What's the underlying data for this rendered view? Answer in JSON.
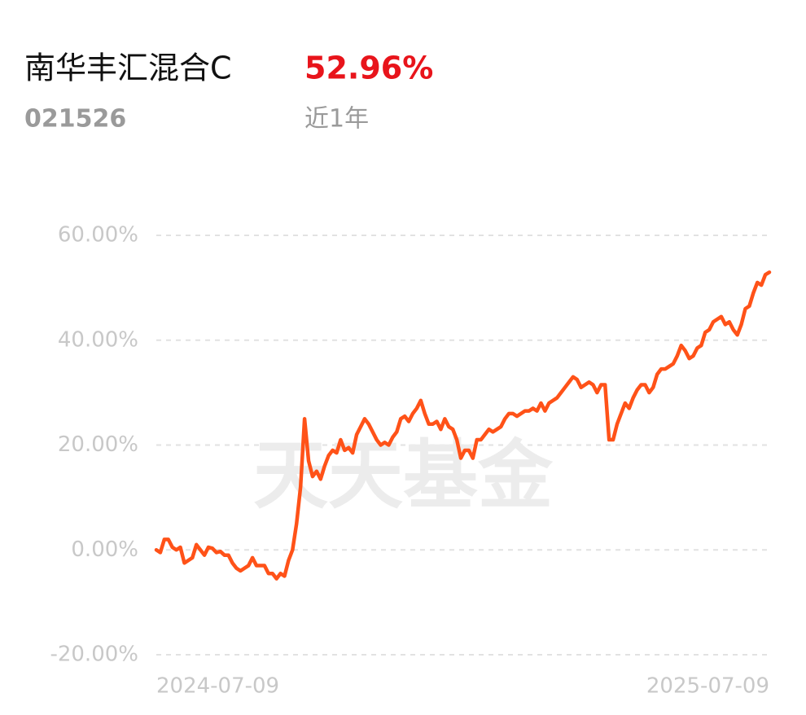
{
  "header": {
    "title": "南华丰汇混合C",
    "return": "52.96%",
    "code": "021526",
    "period": "近1年"
  },
  "chart_data": {
    "type": "line",
    "watermark": "天天基金",
    "color": "#ff5218",
    "grid": true,
    "ylim": [
      -20,
      60
    ],
    "yticks": [
      {
        "value": -20,
        "label": "-20.00%"
      },
      {
        "value": 0,
        "label": "0.00%"
      },
      {
        "value": 20,
        "label": "20.00%"
      },
      {
        "value": 40,
        "label": "40.00%"
      },
      {
        "value": 60,
        "label": "60.00%"
      }
    ],
    "categories": [
      "2024-07-09",
      null,
      null,
      null,
      null,
      null,
      null,
      null,
      null,
      null,
      null,
      null,
      null,
      null,
      null,
      null,
      null,
      null,
      null,
      null,
      null,
      null,
      null,
      null,
      null,
      null,
      null,
      null,
      null,
      null,
      null,
      null,
      null,
      null,
      null,
      null,
      null,
      null,
      null,
      null,
      null,
      null,
      null,
      null,
      null,
      null,
      null,
      null,
      null,
      null,
      null,
      null,
      null,
      null,
      null,
      null,
      null,
      null,
      null,
      null,
      null,
      null,
      null,
      null,
      null,
      null,
      null,
      null,
      null,
      null,
      null,
      null,
      null,
      null,
      null,
      null,
      null,
      null,
      null,
      null,
      null,
      null,
      null,
      null,
      null,
      null,
      null,
      null,
      null,
      null,
      null,
      null,
      null,
      null,
      null,
      null,
      null,
      null,
      null,
      null,
      null,
      null,
      null,
      null,
      null,
      null,
      null,
      null,
      null,
      null,
      null,
      null,
      null,
      null,
      null,
      null,
      null,
      null,
      null,
      null,
      null,
      null,
      null,
      null,
      null,
      null,
      null,
      null,
      null,
      null,
      null,
      null,
      null,
      null,
      null,
      null,
      null,
      null,
      null,
      null,
      null,
      null,
      null,
      null,
      null,
      null,
      null,
      null,
      null,
      null,
      null,
      null,
      null,
      "2025-07-09"
    ],
    "values": [
      0,
      -0.5,
      2,
      2,
      0.5,
      0,
      0.5,
      -2.5,
      -2,
      -1.5,
      1,
      0,
      -1,
      0.5,
      0.3,
      -0.5,
      -0.3,
      -1,
      -1,
      -2.5,
      -3.5,
      -4,
      -3.5,
      -3,
      -1.5,
      -3,
      -3,
      -3,
      -4.5,
      -4.5,
      -5.5,
      -4.5,
      -5,
      -2,
      0,
      5,
      12,
      25,
      17,
      14,
      15,
      13.5,
      16,
      18,
      19,
      18.5,
      21,
      19,
      19.5,
      18.5,
      22,
      23.5,
      25,
      24,
      22.5,
      21,
      20,
      20.5,
      20,
      21.5,
      22.5,
      25,
      25.5,
      24.5,
      26,
      27,
      28.5,
      26,
      24,
      24,
      24.5,
      23,
      25,
      23.5,
      23,
      21,
      17.5,
      19,
      19,
      17.5,
      21,
      21,
      22,
      23,
      22.5,
      23,
      23.5,
      25,
      26,
      26,
      25.5,
      26,
      26.5,
      26.5,
      27,
      26.5,
      28,
      26.5,
      28,
      28.5,
      29,
      30,
      31,
      32,
      33,
      32.5,
      31,
      31.5,
      32,
      31.5,
      30,
      31.5,
      31.5,
      21,
      21,
      24,
      26,
      28,
      27,
      29,
      30.5,
      31.5,
      31.5,
      30,
      31,
      33.5,
      34.5,
      34.5,
      35,
      35.5,
      37,
      39,
      38,
      36.5,
      37,
      38.5,
      39,
      41.5,
      42,
      43.5,
      44,
      44.5,
      43,
      43.5,
      42,
      41,
      43,
      46,
      46.5,
      49,
      51,
      50.5,
      52.5,
      52.96
    ]
  }
}
